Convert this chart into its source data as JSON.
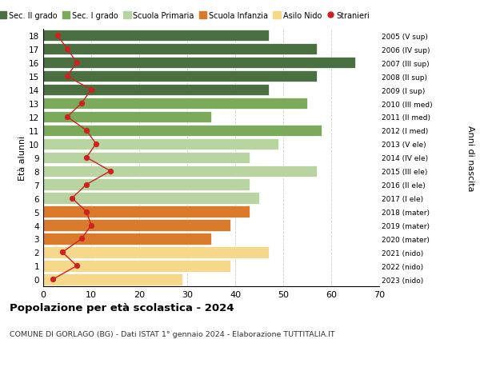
{
  "ages": [
    18,
    17,
    16,
    15,
    14,
    13,
    12,
    11,
    10,
    9,
    8,
    7,
    6,
    5,
    4,
    3,
    2,
    1,
    0
  ],
  "right_labels": [
    "2005 (V sup)",
    "2006 (IV sup)",
    "2007 (III sup)",
    "2008 (II sup)",
    "2009 (I sup)",
    "2010 (III med)",
    "2011 (II med)",
    "2012 (I med)",
    "2013 (V ele)",
    "2014 (IV ele)",
    "2015 (III ele)",
    "2016 (II ele)",
    "2017 (I ele)",
    "2018 (mater)",
    "2019 (mater)",
    "2020 (mater)",
    "2021 (nido)",
    "2022 (nido)",
    "2023 (nido)"
  ],
  "bar_values": [
    47,
    57,
    65,
    57,
    47,
    55,
    35,
    58,
    49,
    43,
    57,
    43,
    45,
    43,
    39,
    35,
    47,
    39,
    29
  ],
  "stranieri_values": [
    3,
    5,
    7,
    5,
    10,
    8,
    5,
    9,
    11,
    9,
    14,
    9,
    6,
    9,
    10,
    8,
    4,
    7,
    2
  ],
  "bar_colors": [
    "#4a7041",
    "#4a7041",
    "#4a7041",
    "#4a7041",
    "#4a7041",
    "#7aaa5a",
    "#7aaa5a",
    "#7aaa5a",
    "#b8d4a0",
    "#b8d4a0",
    "#b8d4a0",
    "#b8d4a0",
    "#b8d4a0",
    "#d97b2b",
    "#d97b2b",
    "#d97b2b",
    "#f5d88a",
    "#f5d88a",
    "#f5d88a"
  ],
  "legend_labels": [
    "Sec. II grado",
    "Sec. I grado",
    "Scuola Primaria",
    "Scuola Infanzia",
    "Asilo Nido",
    "Stranieri"
  ],
  "legend_colors": [
    "#4a7041",
    "#7aaa5a",
    "#b8d4a0",
    "#d97b2b",
    "#f5d88a",
    "#cc2222"
  ],
  "stranieri_line_color": "#cc2222",
  "title": "Popolazione per età scolastica - 2024",
  "subtitle": "COMUNE DI GORLAGO (BG) - Dati ISTAT 1° gennaio 2024 - Elaborazione TUTTITALIA.IT",
  "ylabel_left": "Età alunni",
  "ylabel_right": "Anni di nascita",
  "xlim": [
    0,
    70
  ],
  "background_color": "#ffffff",
  "grid_color": "#cccccc"
}
